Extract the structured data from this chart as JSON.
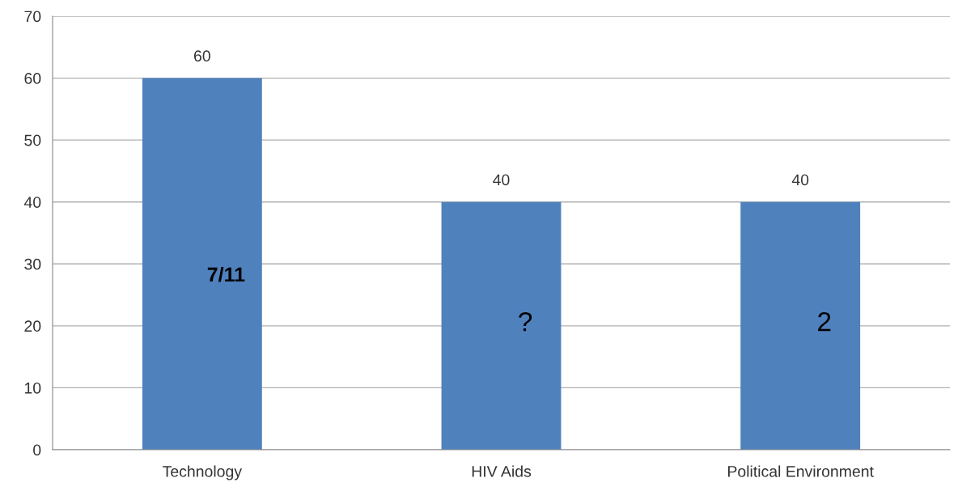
{
  "chart_data": {
    "type": "bar",
    "categories": [
      "Technology",
      "HIV Aids",
      "Political Environment"
    ],
    "values": [
      60,
      40,
      40
    ],
    "color": "#4f81bd",
    "ylim": [
      0,
      70
    ],
    "yticks": [
      0,
      10,
      20,
      30,
      40,
      50,
      60,
      70
    ],
    "grid": "y",
    "data_labels": true,
    "annotations": [
      "7/11",
      "?",
      "2"
    ]
  }
}
